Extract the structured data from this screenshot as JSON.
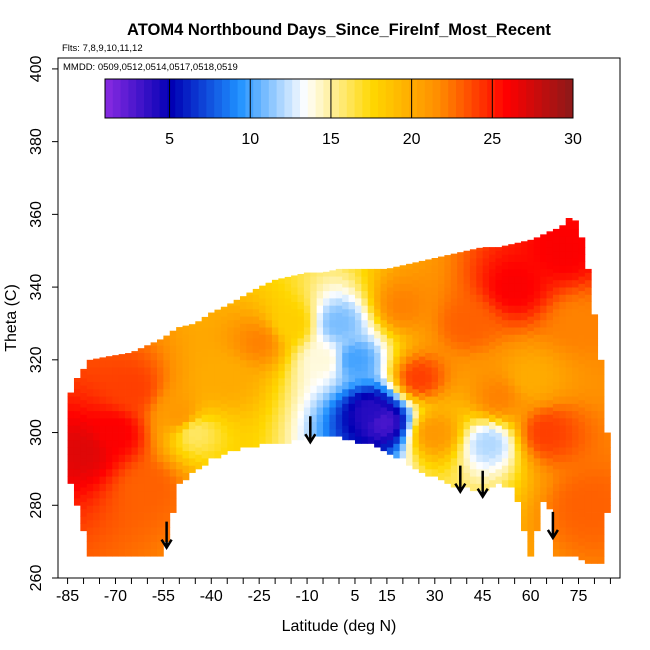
{
  "chart_data": {
    "type": "heatmap",
    "title": "ATOM4 Northbound Days_Since_FireInf_Most_Recent",
    "notes": [
      "Flts: 7,8,9,10,11,12",
      "MMDD: 0509,0512,0514,0517,0518,0519"
    ],
    "xlabel": "Latitude (deg N)",
    "ylabel": "Theta (C)",
    "xlim": [
      -88,
      88
    ],
    "ylim": [
      260,
      403
    ],
    "x_ticks": [
      "-85",
      "-70",
      "-55",
      "-40",
      "-25",
      "-10",
      "5",
      "15",
      "30",
      "45",
      "60",
      "75"
    ],
    "y_ticks": [
      "260",
      "280",
      "300",
      "320",
      "340",
      "360",
      "380",
      "400"
    ],
    "colorbar": {
      "ticks": [
        "5",
        "10",
        "15",
        "20",
        "25",
        "30"
      ],
      "range": [
        1,
        30
      ],
      "colors": [
        "#8a2be2",
        "#0000b4",
        "#1e90ff",
        "#ffffff",
        "#ffd700",
        "#ff8c00",
        "#ff0000",
        "#8b1a1a"
      ]
    },
    "arrows_lat": [
      -54,
      -9,
      38,
      45,
      67
    ],
    "field_envelope": {
      "lat": [
        -85,
        -82,
        -78,
        -72,
        -65,
        -60,
        -55,
        -52,
        -50,
        -45,
        -40,
        -35,
        -25,
        -20,
        -15,
        -10,
        -5,
        0,
        5,
        10,
        15,
        20,
        25,
        30,
        35,
        40,
        45,
        50,
        55,
        60,
        63,
        65,
        68,
        70,
        72,
        75,
        78,
        82,
        84
      ],
      "theta_top": [
        309,
        315,
        320,
        321,
        322,
        324,
        326,
        328,
        329,
        330,
        333,
        335,
        340,
        342,
        343,
        344,
        344,
        345,
        345,
        345,
        345,
        346,
        347,
        348,
        349,
        350,
        351,
        351,
        352,
        353,
        354,
        355,
        356,
        357,
        359,
        358,
        345,
        320,
        300
      ],
      "theta_bottom": [
        290,
        280,
        266,
        266,
        266,
        266,
        266,
        278,
        286,
        290,
        293,
        295,
        297,
        297,
        298,
        299,
        299,
        299,
        298,
        297,
        295,
        293,
        290,
        288,
        286,
        285,
        284,
        286,
        285,
        266,
        277,
        286,
        266,
        266,
        266,
        266,
        264,
        264,
        278
      ]
    },
    "field_samples": [
      {
        "lat": -80,
        "theta": 295,
        "value": 27
      },
      {
        "lat": -70,
        "theta": 300,
        "value": 26
      },
      {
        "lat": -65,
        "theta": 312,
        "value": 24
      },
      {
        "lat": -60,
        "theta": 285,
        "value": 23
      },
      {
        "lat": -50,
        "theta": 305,
        "value": 21
      },
      {
        "lat": -45,
        "theta": 300,
        "value": 16
      },
      {
        "lat": -35,
        "theta": 315,
        "value": 20
      },
      {
        "lat": -25,
        "theta": 325,
        "value": 22
      },
      {
        "lat": -15,
        "theta": 330,
        "value": 18
      },
      {
        "lat": -5,
        "theta": 320,
        "value": 14
      },
      {
        "lat": 0,
        "theta": 330,
        "value": 11
      },
      {
        "lat": 5,
        "theta": 320,
        "value": 10
      },
      {
        "lat": 10,
        "theta": 306,
        "value": 4
      },
      {
        "lat": 14,
        "theta": 303,
        "value": 3
      },
      {
        "lat": 20,
        "theta": 335,
        "value": 22
      },
      {
        "lat": 25,
        "theta": 315,
        "value": 24
      },
      {
        "lat": 30,
        "theta": 300,
        "value": 21
      },
      {
        "lat": 40,
        "theta": 330,
        "value": 23
      },
      {
        "lat": 47,
        "theta": 297,
        "value": 12
      },
      {
        "lat": 50,
        "theta": 310,
        "value": 22
      },
      {
        "lat": 55,
        "theta": 340,
        "value": 26
      },
      {
        "lat": 60,
        "theta": 315,
        "value": 20
      },
      {
        "lat": 65,
        "theta": 300,
        "value": 24
      },
      {
        "lat": 70,
        "theta": 350,
        "value": 26
      },
      {
        "lat": 75,
        "theta": 330,
        "value": 22
      },
      {
        "lat": 78,
        "theta": 280,
        "value": 23
      }
    ]
  }
}
